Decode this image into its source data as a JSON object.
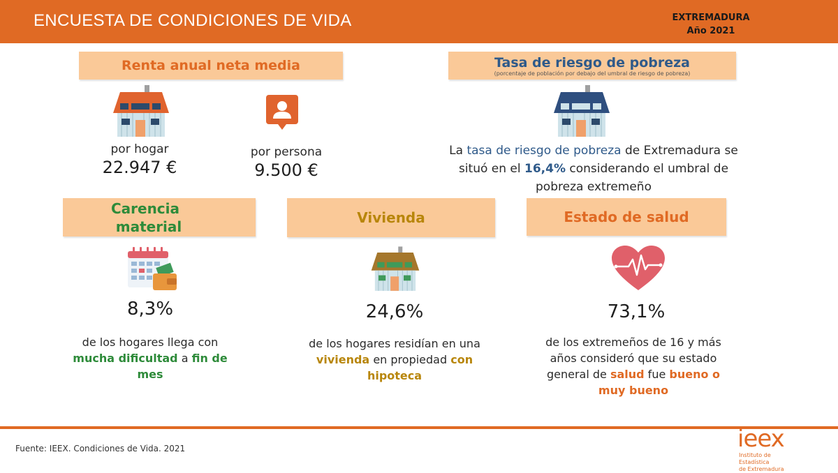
{
  "header": {
    "title": "ENCUESTA DE CONDICIONES DE VIDA",
    "region": "EXTREMADURA",
    "year": "Año 2021"
  },
  "income": {
    "label": "Renta anual neta media",
    "per_household_label": "por hogar",
    "per_household_value": "22.947 €",
    "per_person_label": "por persona",
    "per_person_value": "9.500 €"
  },
  "poverty": {
    "label": "Tasa de riesgo de pobreza",
    "sublabel": "(porcentaje de población por debajo del umbral de riesgo de pobreza)",
    "text_1": "La ",
    "text_highlight": "tasa de riesgo de pobreza",
    "text_2": " de Extremadura se",
    "text_3": "situó en el ",
    "text_value": "16,4%",
    "text_4": " considerando el umbral de",
    "text_5": "pobreza extremeño"
  },
  "material": {
    "label_line1": "Carencia",
    "label_line2": "material",
    "value": "8,3%",
    "text_1": "de los hogares llega con",
    "text_b1": "mucha dificultad",
    "text_2": " a ",
    "text_b2": "fin de",
    "text_b3": "mes"
  },
  "housing": {
    "label": "Vivienda",
    "value": "24,6%",
    "text_1": "de los hogares residían en una",
    "text_b1": "vivienda",
    "text_2": " en propiedad ",
    "text_b2": "con",
    "text_b3": "hipoteca"
  },
  "health": {
    "label": "Estado de salud",
    "value": "73,1%",
    "text_1": "de los extremeños de 16 y más",
    "text_2": "años consideró que su estado",
    "text_3": "general de ",
    "text_b1": "salud",
    "text_4": " fue ",
    "text_b2": "bueno o",
    "text_b3": "muy bueno"
  },
  "footer": {
    "source": "Fuente: IEEX. Condiciones de Vida. 2021",
    "logo_word": "ieex",
    "logo_sub1": "Instituto de Estadística",
    "logo_sub2": "de Extremadura"
  },
  "colors": {
    "accent_orange": "#e06a24",
    "label_bg": "#fac998",
    "blue": "#2f5a8a",
    "green": "#2e8b3a",
    "gold": "#b8860b",
    "heart": "#e0606a"
  },
  "icons": {
    "house_orange": "house-orange-roof-icon",
    "person": "person-badge-icon",
    "house_blue": "house-blue-roof-icon",
    "calendar": "calendar-wallet-icon",
    "house_brown": "house-brown-roof-icon",
    "heart": "heart-pulse-icon"
  }
}
